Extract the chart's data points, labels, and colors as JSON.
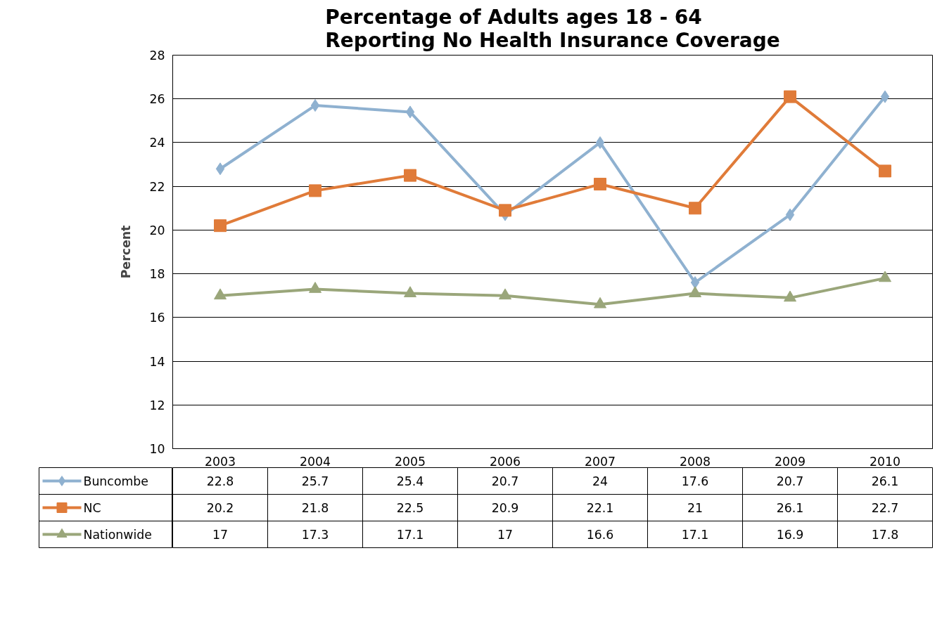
{
  "chart_data": {
    "type": "line",
    "title": "Percentage of Adults ages 18 - 64\nReporting No Health Insurance Coverage",
    "ylabel": "Percent",
    "categories": [
      "2003",
      "2004",
      "2005",
      "2006",
      "2007",
      "2008",
      "2009",
      "2010"
    ],
    "series": [
      {
        "name": "Buncombe",
        "color": "#8fb1d0",
        "marker": "diamond",
        "values": [
          22.8,
          25.7,
          25.4,
          20.7,
          24,
          17.6,
          20.7,
          26.1
        ]
      },
      {
        "name": "NC",
        "color": "#e07b39",
        "marker": "square",
        "values": [
          20.2,
          21.8,
          22.5,
          20.9,
          22.1,
          21,
          26.1,
          22.7
        ]
      },
      {
        "name": "Nationwide",
        "color": "#9aa67a",
        "marker": "triangle",
        "values": [
          17,
          17.3,
          17.1,
          17,
          16.6,
          17.1,
          16.9,
          17.8
        ]
      }
    ],
    "ylim": [
      10,
      28
    ],
    "yticks": [
      10,
      12,
      14,
      16,
      18,
      20,
      22,
      24,
      26,
      28
    ],
    "grid": "y",
    "legend": "bottom",
    "data_labels": true
  }
}
